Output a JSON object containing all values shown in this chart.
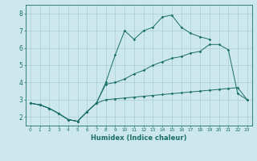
{
  "xlabel": "Humidex (Indice chaleur)",
  "bg_color": "#cce8ec",
  "grid_color": "#aacdd4",
  "line_color": "#1a6e6a",
  "xlim": [
    -0.5,
    23.5
  ],
  "ylim": [
    1.5,
    8.5
  ],
  "xticks": [
    0,
    1,
    2,
    3,
    4,
    5,
    6,
    7,
    8,
    9,
    10,
    11,
    12,
    13,
    14,
    15,
    16,
    17,
    18,
    19,
    20,
    21,
    22,
    23
  ],
  "yticks": [
    2,
    3,
    4,
    5,
    6,
    7,
    8
  ],
  "line1_x": [
    0,
    1,
    2,
    3,
    4,
    5,
    6,
    7,
    8,
    9,
    10,
    11,
    12,
    13,
    14,
    15,
    16,
    17,
    18,
    19,
    20,
    21,
    22,
    23
  ],
  "line1_y": [
    2.8,
    2.7,
    2.5,
    2.2,
    1.85,
    1.75,
    2.3,
    2.8,
    3.0,
    3.05,
    3.1,
    3.15,
    3.2,
    3.25,
    3.3,
    3.35,
    3.4,
    3.45,
    3.5,
    3.55,
    3.6,
    3.65,
    3.7,
    3.0
  ],
  "line2_x": [
    0,
    1,
    2,
    3,
    4,
    5,
    6,
    7,
    8,
    9,
    10,
    11,
    12,
    13,
    14,
    15,
    16,
    17,
    18,
    19,
    20,
    21,
    22,
    23
  ],
  "line2_y": [
    2.8,
    2.7,
    2.5,
    2.2,
    1.85,
    1.75,
    2.3,
    2.8,
    4.0,
    5.6,
    7.0,
    6.5,
    7.0,
    7.2,
    7.8,
    7.9,
    7.2,
    6.85,
    6.65,
    6.5,
    null,
    null,
    null,
    null
  ],
  "line3_x": [
    0,
    1,
    2,
    3,
    4,
    5,
    6,
    7,
    8,
    9,
    10,
    11,
    12,
    13,
    14,
    15,
    16,
    17,
    18,
    19,
    20,
    21,
    22,
    23
  ],
  "line3_y": [
    2.8,
    2.7,
    2.5,
    2.2,
    1.85,
    1.75,
    2.3,
    2.8,
    3.9,
    4.0,
    4.2,
    4.5,
    4.7,
    5.0,
    5.2,
    5.4,
    5.5,
    5.7,
    5.8,
    6.2,
    6.2,
    5.9,
    3.35,
    3.0
  ]
}
